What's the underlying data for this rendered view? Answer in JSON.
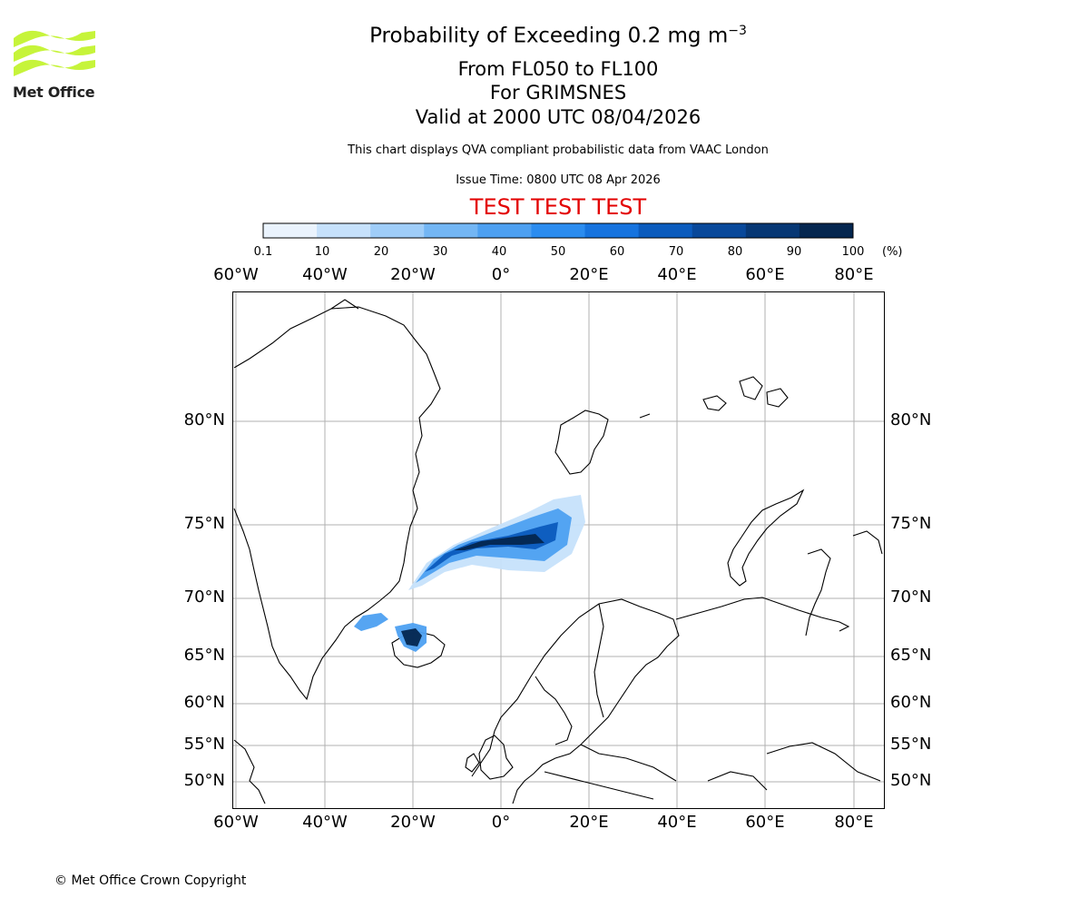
{
  "title": {
    "line1": "Probability of Exceeding 0.2 mg m",
    "line1_superscript": "−3",
    "line2": "From FL050 to FL100",
    "line3": "For GRIMSNES",
    "line4": "Valid at 2000 UTC 08/04/2026"
  },
  "subtitle": {
    "description": "This chart displays QVA compliant probabilistic data from VAAC London",
    "issue_time": "Issue Time: 0800 UTC 08 Apr 2026"
  },
  "banner": {
    "text": "TEST TEST TEST",
    "color": "#e30000"
  },
  "logo": {
    "text": "Met Office",
    "color": "#c6f43a"
  },
  "colorbar": {
    "ticks": [
      "0.1",
      "10",
      "20",
      "30",
      "40",
      "50",
      "60",
      "70",
      "80",
      "90",
      "100"
    ],
    "unit": "(%)",
    "colors": [
      "#eaf3fd",
      "#c6e1fb",
      "#9fcdf8",
      "#73b6f4",
      "#4da0f1",
      "#2b8cef",
      "#1673de",
      "#0b5bbd",
      "#08489a",
      "#063774",
      "#04264f"
    ]
  },
  "map": {
    "lon_labels": [
      "60°W",
      "40°W",
      "20°W",
      "0°",
      "20°E",
      "40°E",
      "60°E",
      "80°E"
    ],
    "lat_labels": [
      "80°N",
      "75°N",
      "70°N",
      "65°N",
      "60°N",
      "55°N",
      "50°N"
    ],
    "plume_colors": {
      "light": "#c6e1fb",
      "mid": "#4da0f1",
      "dark": "#0b5bbd",
      "darkest": "#04264f"
    }
  },
  "footer": {
    "copyright": "© Met Office Crown Copyright"
  }
}
